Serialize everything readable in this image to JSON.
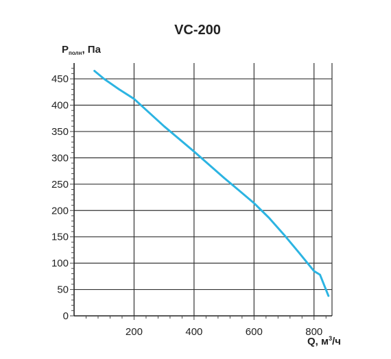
{
  "chart_data": {
    "type": "line",
    "title": "VC-200",
    "ylabel_main": "P",
    "ylabel_sub": "полн",
    "ylabel_tail": ", Па",
    "xlabel_main": "Q, м",
    "xlabel_sup": "3",
    "xlabel_tail": "/ч",
    "xlim": [
      0,
      860
    ],
    "ylim": [
      0,
      480
    ],
    "xticks": [
      200,
      400,
      600,
      800
    ],
    "yticks": [
      0,
      50,
      100,
      150,
      200,
      250,
      300,
      350,
      400,
      450
    ],
    "grid": true,
    "series": [
      {
        "color": "#2cb4e2",
        "x": [
          68,
          100,
          150,
          200,
          250,
          300,
          350,
          400,
          450,
          500,
          550,
          600,
          650,
          700,
          750,
          800,
          820,
          848
        ],
        "y": [
          465,
          450,
          430,
          412,
          386,
          360,
          336,
          312,
          287,
          262,
          238,
          214,
          186,
          154,
          120,
          85,
          78,
          38
        ]
      }
    ]
  }
}
